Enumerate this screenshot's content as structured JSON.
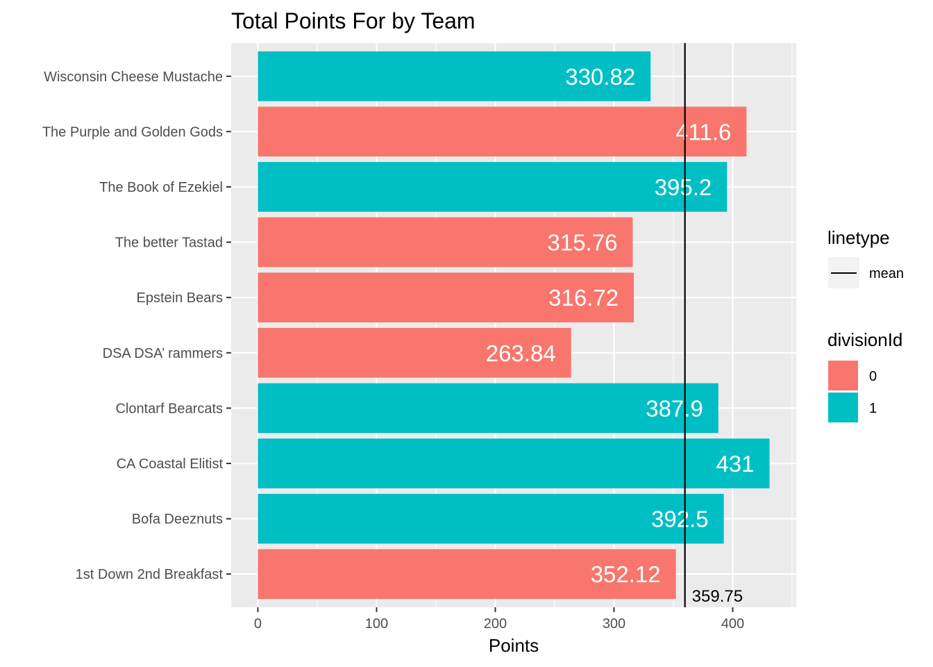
{
  "chart_data": {
    "type": "bar",
    "orientation": "horizontal",
    "title": "Total Points For by Team",
    "xlabel": "Points",
    "ylabel": "",
    "xlim": [
      -22.5,
      453.5
    ],
    "x_ticks": [
      0,
      100,
      200,
      300,
      400
    ],
    "grid": true,
    "categories": [
      "Wisconsin Cheese Mustache",
      "The Purple and Golden Gods",
      "The Book of Ezekiel",
      "The better Tastad",
      "Epstein Bears",
      "DSA DSA’ rammers",
      "Clontarf Bearcats",
      "CA Coastal Elitist",
      "Bofa Deeznuts",
      "1st Down 2nd Breakfast"
    ],
    "values": [
      330.82,
      411.6,
      395.2,
      315.76,
      316.72,
      263.84,
      387.9,
      431,
      392.5,
      352.12
    ],
    "value_labels": [
      "330.82",
      "411.6",
      "395.2",
      "315.76",
      "316.72",
      "263.84",
      "387.9",
      "431",
      "392.5",
      "352.12"
    ],
    "divisionId": [
      "1",
      "0",
      "1",
      "0",
      "0",
      "0",
      "1",
      "1",
      "1",
      "0"
    ],
    "mean_line": {
      "value": 359.75,
      "label": "359.75",
      "legend_label": "mean"
    },
    "legend": {
      "placement": "right",
      "linetype_title": "linetype",
      "fill_title": "divisionId",
      "fill_items": [
        {
          "label": "0",
          "color": "#F8766D"
        },
        {
          "label": "1",
          "color": "#00BFC4"
        }
      ]
    },
    "colors": {
      "0": "#F8766D",
      "1": "#00BFC4",
      "panel": "#EBEBEB",
      "grid": "#FFFFFF",
      "mean": "#000000"
    }
  }
}
